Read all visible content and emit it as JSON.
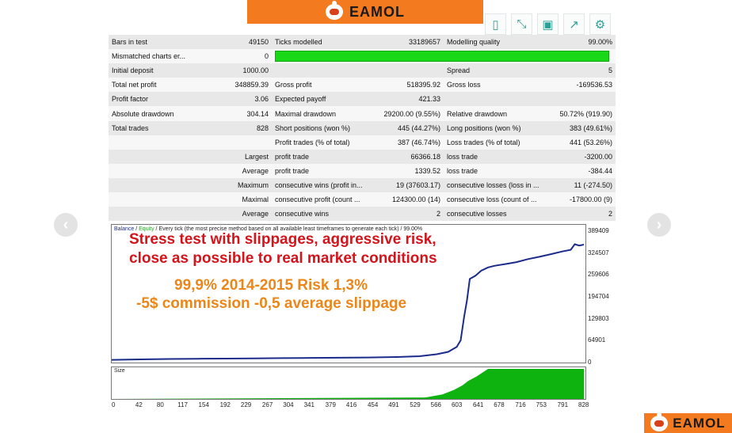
{
  "brand": {
    "logo_text": "EAMOL"
  },
  "toolbar": [
    {
      "icon": "document-icon",
      "glyph": "▯"
    },
    {
      "icon": "expand-icon",
      "glyph": "⤡"
    },
    {
      "icon": "save-icon",
      "glyph": "▣"
    },
    {
      "icon": "share-icon",
      "glyph": "↗"
    },
    {
      "icon": "settings-icon",
      "glyph": "⚙"
    }
  ],
  "nav": {
    "prev": "‹",
    "next": "›"
  },
  "report": {
    "rows": [
      [
        "Bars in test",
        "49150",
        "Ticks modelled",
        "33189657",
        "Modelling quality",
        "99.00%"
      ],
      [
        "Mismatched charts er...",
        "0",
        "",
        "",
        "",
        ""
      ],
      [
        "Initial deposit",
        "1000.00",
        "",
        "",
        "Spread",
        "5"
      ],
      [
        "Total net profit",
        "348859.39",
        "Gross profit",
        "518395.92",
        "Gross loss",
        "-169536.53"
      ],
      [
        "Profit factor",
        "3.06",
        "Expected payoff",
        "421.33",
        "",
        ""
      ],
      [
        "Absolute drawdown",
        "304.14",
        "Maximal drawdown",
        "29200.00 (9.55%)",
        "Relative drawdown",
        "50.72% (919.90)"
      ],
      [
        "Total trades",
        "828",
        "Short positions (won %)",
        "445 (44.27%)",
        "Long positions (won %)",
        "383 (49.61%)"
      ],
      [
        "",
        "",
        "Profit trades (% of total)",
        "387 (46.74%)",
        "Loss trades (% of total)",
        "441 (53.26%)"
      ],
      [
        "",
        "Largest",
        "profit trade",
        "66366.18",
        "loss trade",
        "-3200.00"
      ],
      [
        "",
        "Average",
        "profit trade",
        "1339.52",
        "loss trade",
        "-384.44"
      ],
      [
        "",
        "Maximum",
        "consecutive wins (profit in...",
        "19 (37603.17)",
        "consecutive losses (loss in ...",
        "11 (-274.50)"
      ],
      [
        "",
        "Maximal",
        "consecutive profit (count ...",
        "124300.00 (14)",
        "consecutive loss (count of ...",
        "-17800.00 (9)"
      ],
      [
        "",
        "Average",
        "consecutive wins",
        "2",
        "consecutive losses",
        "2"
      ]
    ],
    "modelling_quality_bar_fraction": 0.99,
    "bar_color": "#18d818"
  },
  "chart": {
    "legend_balance": "Balance",
    "legend_sep1": " / ",
    "legend_equity": "Equity",
    "legend_rest": " / Every tick (the most precise method based on all available least timeframes to generate each tick) / 99.00%",
    "overlay_line1": "Stress test with slippages, aggressive risk,",
    "overlay_line2": "close as possible to real market conditions",
    "overlay_line3": "99,9% 2014-2015 Risk 1,3%",
    "overlay_line4": "-5$ commission -0,5 average slippage",
    "size_label": "Size",
    "y_ticks": [
      "389409",
      "324507",
      "259606",
      "194704",
      "129803",
      "64901",
      "0"
    ],
    "x_ticks": [
      "0",
      "42",
      "80",
      "117",
      "154",
      "192",
      "229",
      "267",
      "304",
      "341",
      "379",
      "416",
      "454",
      "491",
      "529",
      "566",
      "603",
      "641",
      "678",
      "716",
      "753",
      "791",
      "828"
    ],
    "balance_color": "#1b2b8a",
    "size_color": "#0fb30f"
  },
  "chart_data": {
    "type": "line",
    "xlim": [
      0,
      828
    ],
    "ylim": [
      0,
      389409
    ],
    "series": [
      {
        "name": "Balance",
        "x": [
          0,
          50,
          100,
          150,
          200,
          250,
          300,
          350,
          400,
          450,
          500,
          540,
          570,
          590,
          605,
          612,
          618,
          623,
          628,
          638,
          648,
          660,
          672,
          690,
          710,
          730,
          750,
          770,
          790,
          805,
          812,
          820,
          828
        ],
        "y": [
          1000,
          2500,
          3500,
          4200,
          4800,
          5500,
          6200,
          7000,
          7500,
          8200,
          9500,
          12000,
          18000,
          25000,
          40000,
          60000,
          130000,
          180000,
          245000,
          255000,
          270000,
          280000,
          285000,
          290000,
          296000,
          305000,
          312000,
          320000,
          328000,
          333000,
          350000,
          346000,
          348859
        ]
      }
    ],
    "size": {
      "x": [
        0,
        550,
        580,
        600,
        615,
        625,
        640,
        660,
        828
      ],
      "y": [
        0,
        0.05,
        0.15,
        0.3,
        0.45,
        0.6,
        0.75,
        1,
        1
      ]
    }
  }
}
